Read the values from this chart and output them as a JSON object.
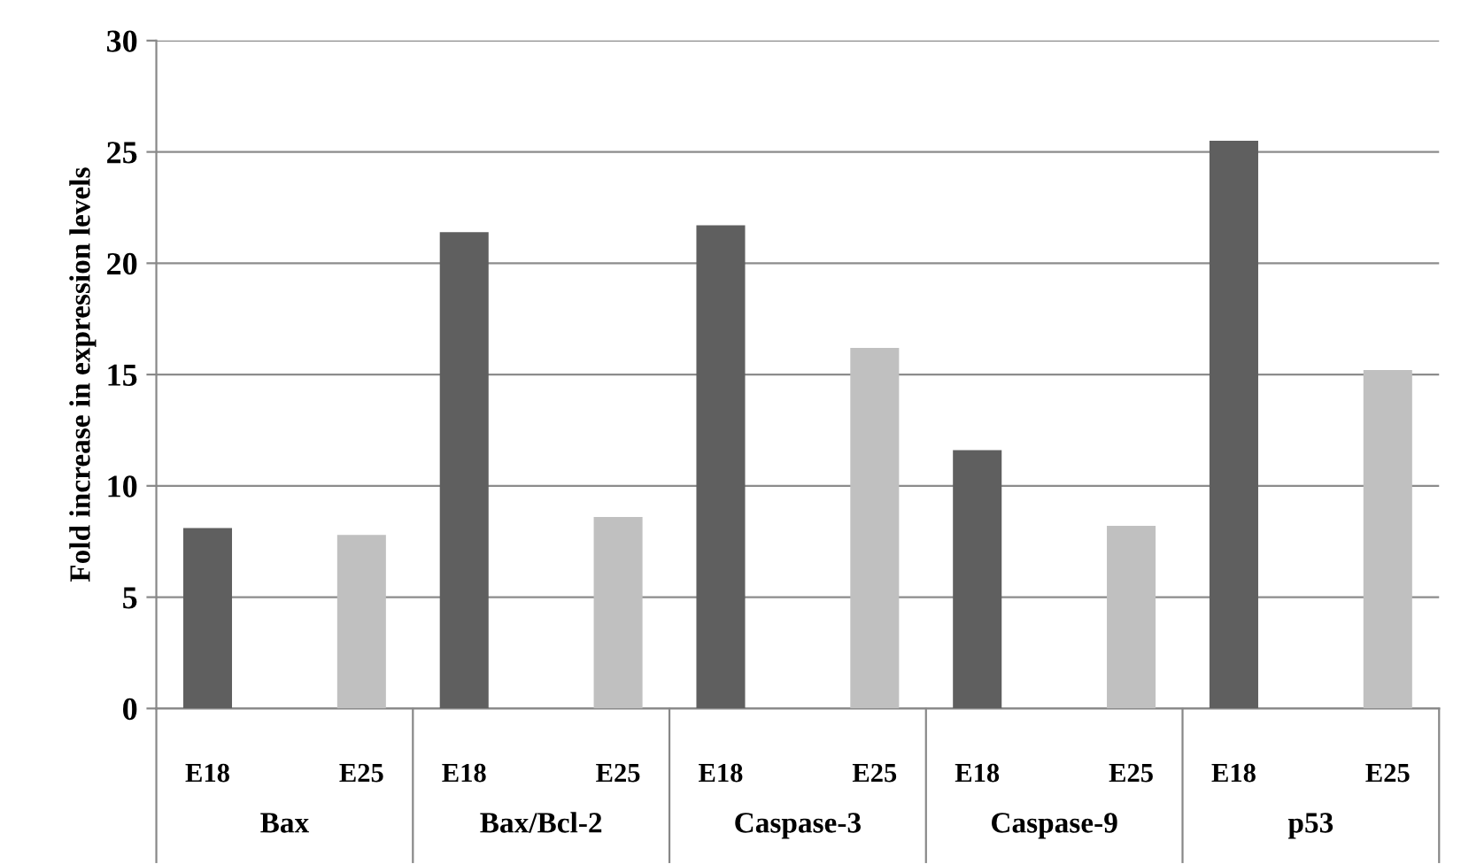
{
  "chart_data": {
    "type": "bar",
    "ylabel": "Fold increase in expression levels",
    "categories": [
      "Bax",
      "Bax/Bcl-2",
      "Caspase-3",
      "Caspase-9",
      "p53"
    ],
    "series": [
      {
        "name": "E18",
        "color": "#5f5f5f",
        "values": [
          8.1,
          21.4,
          21.7,
          11.6,
          25.5
        ]
      },
      {
        "name": "E25",
        "color": "#c0c0c0",
        "values": [
          7.8,
          8.6,
          16.2,
          8.2,
          15.2
        ]
      }
    ],
    "ylim": [
      0,
      30
    ],
    "yticks": [
      0,
      5,
      10,
      15,
      20,
      25,
      30
    ],
    "grid": "y",
    "legend": false
  }
}
